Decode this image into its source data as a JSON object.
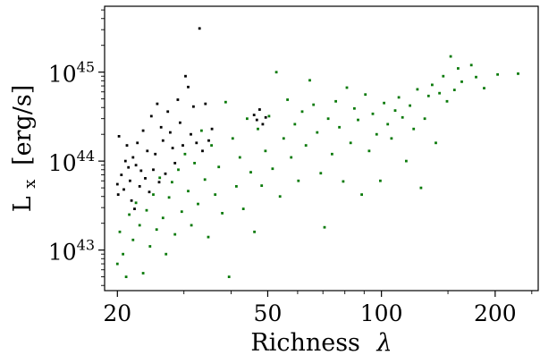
{
  "chart_data": {
    "type": "scatter",
    "title": "",
    "xlabel": "Richness",
    "xlabel_symbol": "λ",
    "ylabel": "L",
    "ylabel_subscript": "x",
    "ylabel_unit": "[erg/s]",
    "x_scale": "log",
    "y_scale": "log",
    "xlim": [
      18.5,
      260
    ],
    "ylim": [
      3.5e+42,
      5.5e+45
    ],
    "x_ticks": [
      {
        "value": 20,
        "label": "20"
      },
      {
        "value": 50,
        "label": "50"
      },
      {
        "value": 100,
        "label": "100"
      },
      {
        "value": 200,
        "label": "200"
      }
    ],
    "y_ticks": [
      {
        "value": 1e+43,
        "base": "10",
        "exp": "43"
      },
      {
        "value": 1e+44,
        "base": "10",
        "exp": "44"
      },
      {
        "value": 1e+45,
        "base": "10",
        "exp": "45"
      }
    ],
    "grid": false,
    "legend": "none",
    "series": [
      {
        "color": "#000000",
        "points": [
          [
            20.0,
            5.5e+43
          ],
          [
            20.1,
            4.2e+43
          ],
          [
            20.2,
            1.9e+44
          ],
          [
            20.5,
            7e+43
          ],
          [
            20.8,
            4.8e+43
          ],
          [
            21.0,
            1e+44
          ],
          [
            21.2,
            1.5e+44
          ],
          [
            21.4,
            8.5e+43
          ],
          [
            21.6,
            6e+43
          ],
          [
            21.8,
            3.6e+43
          ],
          [
            22.0,
            1.1e+44
          ],
          [
            22.2,
            2.9e+43
          ],
          [
            22.4,
            9e+43
          ],
          [
            22.6,
            1.6e+44
          ],
          [
            22.9,
            5.2e+43
          ],
          [
            23.1,
            7.8e+43
          ],
          [
            23.4,
            2.2e+44
          ],
          [
            23.7,
            6.4e+43
          ],
          [
            24.0,
            1.3e+44
          ],
          [
            24.3,
            4.5e+43
          ],
          [
            24.6,
            3.2e+44
          ],
          [
            24.9,
            8e+43
          ],
          [
            25.2,
            1.2e+44
          ],
          [
            25.5,
            4.4e+44
          ],
          [
            25.8,
            5.8e+43
          ],
          [
            26.1,
            2.4e+44
          ],
          [
            26.4,
            1.7e+44
          ],
          [
            26.8,
            7.2e+43
          ],
          [
            27.2,
            3.6e+44
          ],
          [
            27.6,
            2.1e+44
          ],
          [
            28.0,
            1.4e+44
          ],
          [
            28.4,
            9.5e+43
          ],
          [
            28.9,
            4.9e+44
          ],
          [
            29.3,
            2.7e+44
          ],
          [
            29.8,
            1.5e+44
          ],
          [
            30.3,
            9e+44
          ],
          [
            30.8,
            6.8e+44
          ],
          [
            31.3,
            2e+44
          ],
          [
            31.8,
            4.1e+44
          ],
          [
            32.4,
            1.6e+44
          ],
          [
            33.0,
            3.1e+45
          ],
          [
            33.6,
            1.3e+44
          ],
          [
            34.2,
            4.4e+44
          ],
          [
            34.9,
            1.7e+44
          ],
          [
            35.6,
            2.3e+44
          ],
          [
            46.0,
            3.3e+44
          ],
          [
            46.8,
            2.9e+44
          ],
          [
            47.6,
            3.8e+44
          ],
          [
            48.5,
            2.6e+44
          ],
          [
            49.4,
            3.1e+44
          ]
        ]
      },
      {
        "color": "#0a7a0a",
        "points": [
          [
            20.0,
            7e+42
          ],
          [
            20.3,
            1.6e+43
          ],
          [
            20.7,
            9e+42
          ],
          [
            21.1,
            5e+42
          ],
          [
            21.5,
            2.5e+43
          ],
          [
            22.0,
            1.3e+43
          ],
          [
            22.4,
            3.4e+43
          ],
          [
            22.9,
            1.9e+43
          ],
          [
            23.4,
            5.5e+42
          ],
          [
            23.9,
            2.8e+43
          ],
          [
            24.4,
            1.1e+43
          ],
          [
            24.9,
            4.2e+43
          ],
          [
            25.4,
            1.7e+43
          ],
          [
            25.9,
            6.5e+43
          ],
          [
            26.4,
            2.3e+43
          ],
          [
            26.9,
            9e+42
          ],
          [
            27.4,
            3.9e+43
          ],
          [
            27.9,
            5.8e+43
          ],
          [
            28.4,
            1.5e+43
          ],
          [
            29.0,
            8e+43
          ],
          [
            29.6,
            2.7e+43
          ],
          [
            30.2,
            1.2e+44
          ],
          [
            30.8,
            4.6e+43
          ],
          [
            31.4,
            1.9e+43
          ],
          [
            32.0,
            9.5e+43
          ],
          [
            32.7,
            3.3e+43
          ],
          [
            33.4,
            2.2e+44
          ],
          [
            34.1,
            6.2e+43
          ],
          [
            34.8,
            1.4e+43
          ],
          [
            35.5,
            1.5e+44
          ],
          [
            36.3,
            4.2e+43
          ],
          [
            37.1,
            8.6e+43
          ],
          [
            37.9,
            2.6e+43
          ],
          [
            38.7,
            4.6e+44
          ],
          [
            39.5,
            5e+42
          ],
          [
            40.4,
            1.8e+44
          ],
          [
            41.3,
            5.2e+43
          ],
          [
            42.2,
            1.1e+44
          ],
          [
            43.1,
            2.9e+43
          ],
          [
            44.1,
            3e+44
          ],
          [
            45.1,
            7.5e+43
          ],
          [
            46.1,
            1.6e+43
          ],
          [
            47.1,
            2.3e+44
          ],
          [
            48.2,
            5.3e+43
          ],
          [
            49.3,
            1.3e+44
          ],
          [
            50.4,
            3.2e+44
          ],
          [
            51.5,
            8.2e+43
          ],
          [
            52.7,
            1e+45
          ],
          [
            53.9,
            4e+43
          ],
          [
            55.1,
            1.8e+44
          ],
          [
            56.4,
            4.9e+44
          ],
          [
            57.7,
            1.1e+44
          ],
          [
            59.0,
            2.6e+44
          ],
          [
            60.3,
            6e+43
          ],
          [
            61.7,
            3.6e+44
          ],
          [
            63.1,
            1.5e+44
          ],
          [
            64.6,
            8.1e+44
          ],
          [
            66.1,
            4.3e+44
          ],
          [
            67.6,
            2.1e+44
          ],
          [
            69.1,
            7.3e+43
          ],
          [
            70.7,
            1.8e+43
          ],
          [
            72.3,
            3e+44
          ],
          [
            74.0,
            1.2e+44
          ],
          [
            75.7,
            4.7e+44
          ],
          [
            77.4,
            2.4e+44
          ],
          [
            79.2,
            5.9e+43
          ],
          [
            81.0,
            6.7e+44
          ],
          [
            82.9,
            1.6e+44
          ],
          [
            84.8,
            3.9e+44
          ],
          [
            86.7,
            2.9e+44
          ],
          [
            88.7,
            4.2e+43
          ],
          [
            90.7,
            5.6e+44
          ],
          [
            92.8,
            1.3e+44
          ],
          [
            94.9,
            3.4e+44
          ],
          [
            97.1,
            2e+44
          ],
          [
            99.3,
            6e+43
          ],
          [
            101.6,
            4.5e+44
          ],
          [
            103.9,
            2.6e+44
          ],
          [
            106.3,
            1.8e+44
          ],
          [
            108.7,
            3.7e+44
          ],
          [
            111.2,
            5.2e+44
          ],
          [
            113.7,
            3.1e+44
          ],
          [
            116.3,
            1e+44
          ],
          [
            119.0,
            4.2e+44
          ],
          [
            121.7,
            2.3e+44
          ],
          [
            124.5,
            6.4e+44
          ],
          [
            127.3,
            5e+43
          ],
          [
            130.2,
            3e+44
          ],
          [
            133.2,
            5.4e+44
          ],
          [
            136.2,
            7.2e+44
          ],
          [
            139.3,
            1.6e+44
          ],
          [
            142.5,
            5.8e+44
          ],
          [
            145.8,
            9e+44
          ],
          [
            149.1,
            4.7e+44
          ],
          [
            152.5,
            1.5e+45
          ],
          [
            156.0,
            6.3e+44
          ],
          [
            159.6,
            1.1e+45
          ],
          [
            163.2,
            7.8e+44
          ],
          [
            173.0,
            1.2e+45
          ],
          [
            178.0,
            8.8e+44
          ],
          [
            187.0,
            6.6e+44
          ],
          [
            203.0,
            9.4e+44
          ],
          [
            230.0,
            9.6e+44
          ]
        ]
      }
    ]
  }
}
